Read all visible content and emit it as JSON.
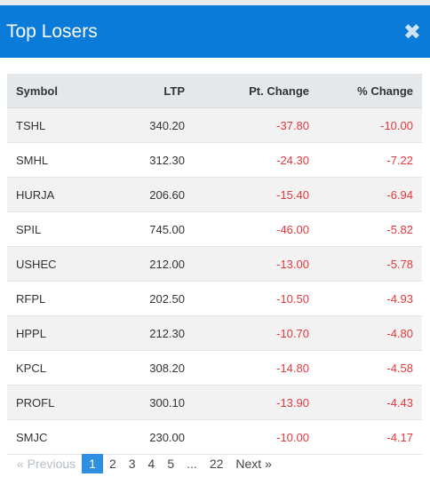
{
  "modal": {
    "title": "Top Losers",
    "close_glyph": "✖",
    "close_icon_name": "close-icon"
  },
  "table": {
    "headers": [
      "Symbol",
      "LTP",
      "Pt. Change",
      "% Change"
    ],
    "rows": [
      {
        "symbol": "TSHL",
        "ltp": "340.20",
        "pt_change": "-37.80",
        "pct_change": "-10.00"
      },
      {
        "symbol": "SMHL",
        "ltp": "312.30",
        "pt_change": "-24.30",
        "pct_change": "-7.22"
      },
      {
        "symbol": "HURJA",
        "ltp": "206.60",
        "pt_change": "-15.40",
        "pct_change": "-6.94"
      },
      {
        "symbol": "SPIL",
        "ltp": "745.00",
        "pt_change": "-46.00",
        "pct_change": "-5.82"
      },
      {
        "symbol": "USHEC",
        "ltp": "212.00",
        "pt_change": "-13.00",
        "pct_change": "-5.78"
      },
      {
        "symbol": "RFPL",
        "ltp": "202.50",
        "pt_change": "-10.50",
        "pct_change": "-4.93"
      },
      {
        "symbol": "HPPL",
        "ltp": "212.30",
        "pt_change": "-10.70",
        "pct_change": "-4.80"
      },
      {
        "symbol": "KPCL",
        "ltp": "308.20",
        "pt_change": "-14.80",
        "pct_change": "-4.58"
      },
      {
        "symbol": "PROFL",
        "ltp": "300.10",
        "pt_change": "-13.90",
        "pct_change": "-4.43"
      },
      {
        "symbol": "SMJC",
        "ltp": "230.00",
        "pt_change": "-10.00",
        "pct_change": "-4.17"
      }
    ]
  },
  "pagination": {
    "prev_label": "« Previous",
    "pages": [
      "1",
      "2",
      "3",
      "4",
      "5"
    ],
    "active_page": "1",
    "ellipsis": "...",
    "last_page": "22",
    "next_label": "Next »"
  },
  "colors": {
    "header_bg": "#0a7bd8",
    "negative": "#e4393c",
    "active_page_bg": "#2f8fe0"
  }
}
